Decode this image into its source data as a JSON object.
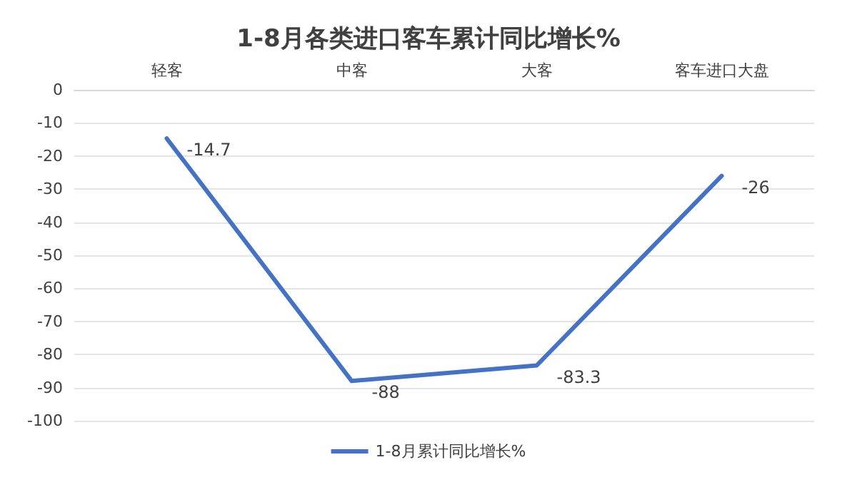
{
  "chart_data": {
    "type": "line",
    "title": "1-8月各类进口客车累计同比增长%",
    "categories": [
      "轻客",
      "中客",
      "大客",
      "客车进口大盘"
    ],
    "series": [
      {
        "name": "1-8月累计同比增长%",
        "color": "#4472c4",
        "values": [
          -14.7,
          -88,
          -83.3,
          -26
        ]
      }
    ],
    "ylim": [
      -100,
      0
    ],
    "yticks": [
      -100,
      -90,
      -80,
      -70,
      -60,
      -50,
      -40,
      -30,
      -20,
      -10,
      0
    ],
    "grid": "y",
    "legend": "bottom",
    "marker": "none",
    "line_style": "solid",
    "data_labels": true
  }
}
